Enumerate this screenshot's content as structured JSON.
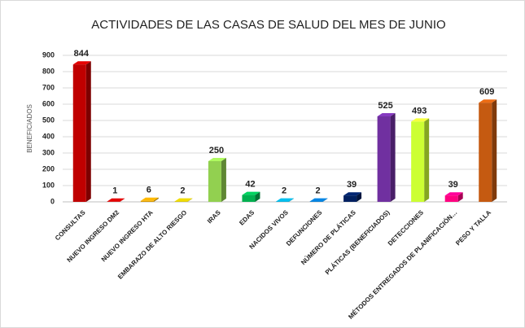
{
  "chart_data": {
    "type": "bar3d",
    "title": "ACTIVIDADES DE LAS CASAS DE SALUD DEL MES DE JUNIO",
    "y_label": "BENEFICIADOS",
    "categories": [
      "CONSULTAS",
      "NUEVO INGRESO DM2",
      "NUEVO INGRESO HTA",
      "EMBARAZO DE ALTO RIESGO",
      "IRAS",
      "EDAS",
      "NACIDOS VIVOS",
      "DEFUNCIONES",
      "NÚMERO DE PLÁTICAS",
      "PLÁTICAS (BENEFICIADOS)",
      "DETECCIONES",
      "MÉTODOS ENTREGADOS DE PLANIFICACIÓN…",
      "PESO Y TALLA"
    ],
    "values": [
      844,
      1,
      6,
      2,
      250,
      42,
      2,
      2,
      39,
      525,
      493,
      39,
      609
    ],
    "colors": [
      "#c00000",
      "#c00000",
      "#d99a00",
      "#c9b800",
      "#92d050",
      "#00b050",
      "#00a0c8",
      "#0070c0",
      "#002060",
      "#7030a0",
      "#ccff33",
      "#ff0080",
      "#c55a11"
    ],
    "ylim": [
      0,
      900
    ],
    "yticks": [
      0,
      100,
      200,
      300,
      400,
      500,
      600,
      700,
      800,
      900
    ],
    "grid": true
  }
}
